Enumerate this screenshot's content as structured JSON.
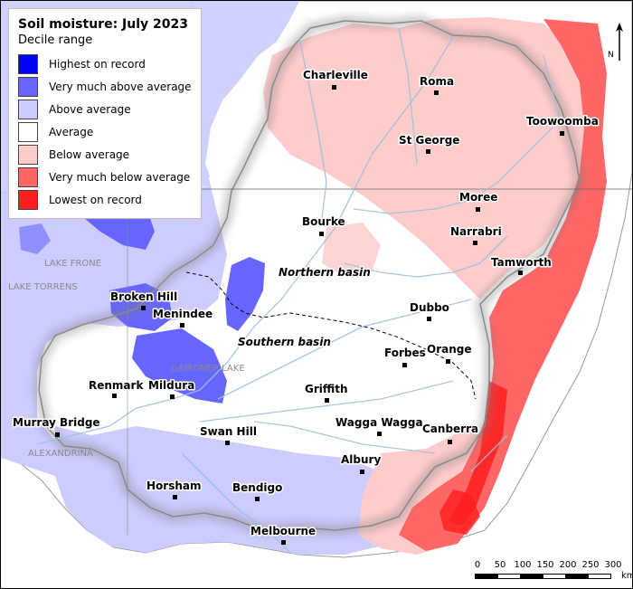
{
  "legend": {
    "title": "Soil moisture: July 2023",
    "subtitle": "Decile range",
    "items": [
      {
        "label": "Highest on record",
        "color": "#0000ff"
      },
      {
        "label": "Very much above average",
        "color": "#6666ff"
      },
      {
        "label": "Above average",
        "color": "#ccccff"
      },
      {
        "label": "Average",
        "color": "#ffffff"
      },
      {
        "label": "Below average",
        "color": "#ffcccc"
      },
      {
        "label": "Very much below average",
        "color": "#ff6666"
      },
      {
        "label": "Lowest on record",
        "color": "#ff1f1f"
      }
    ]
  },
  "places": {
    "charleville": "Charleville",
    "roma": "Roma",
    "toowoomba": "Toowoomba",
    "st_george": "St George",
    "moree": "Moree",
    "narrabri": "Narrabri",
    "bourke": "Bourke",
    "tamworth": "Tamworth",
    "broken_hill": "Broken Hill",
    "menindee": "Menindee",
    "dubbo": "Dubbo",
    "orange": "Orange",
    "forbes": "Forbes",
    "renmark": "Renmark",
    "mildura": "Mildura",
    "griffith": "Griffith",
    "murray_bridge": "Murray Bridge",
    "swan_hill": "Swan Hill",
    "wagga_wagga": "Wagga Wagga",
    "canberra": "Canberra",
    "albury": "Albury",
    "horsham": "Horsham",
    "bendigo": "Bendigo",
    "melbourne": "Melbourne"
  },
  "basins": {
    "northern": "Northern basin",
    "southern": "Southern basin"
  },
  "lakes": {
    "frome": "LAKE FRONE",
    "torrens": "LAKE TORRENS",
    "gairdner": "GAIRDNER LAKE",
    "alexandrina": "ALEXANDRINA"
  },
  "scale": {
    "ticks": [
      "0",
      "50",
      "100",
      "150",
      "200",
      "250",
      "300"
    ],
    "unit": "km"
  },
  "north_arrow": {
    "label": "N"
  }
}
